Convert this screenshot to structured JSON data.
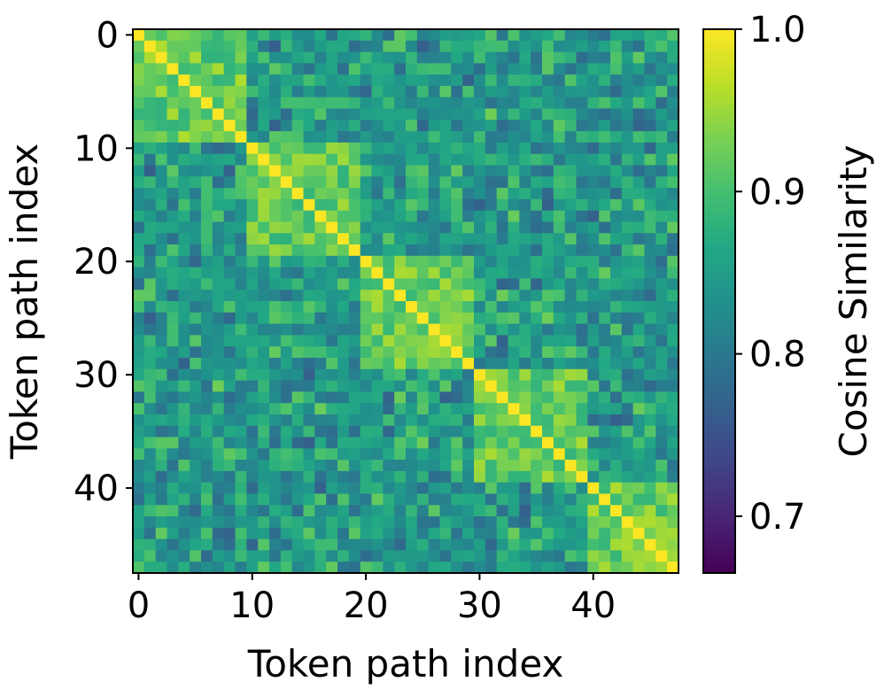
{
  "chart_data": {
    "type": "heatmap",
    "title": "",
    "xlabel": "Token path index",
    "ylabel": "Token path index",
    "n": 48,
    "block_size": 10,
    "x_ticks": [
      0,
      10,
      20,
      30,
      40
    ],
    "y_ticks": [
      0,
      10,
      20,
      30,
      40
    ],
    "colorbar": {
      "label": "Cosine Similarity",
      "range": [
        0.665,
        1.0
      ],
      "ticks": [
        "0.7",
        "0.8",
        "0.9",
        "1.0"
      ],
      "tick_values": [
        0.7,
        0.8,
        0.9,
        1.0
      ],
      "colormap": "viridis"
    },
    "value_description": {
      "diagonal": 1.0,
      "within_block_range": [
        0.88,
        0.96
      ],
      "off_block_range": [
        0.67,
        0.93
      ]
    }
  }
}
